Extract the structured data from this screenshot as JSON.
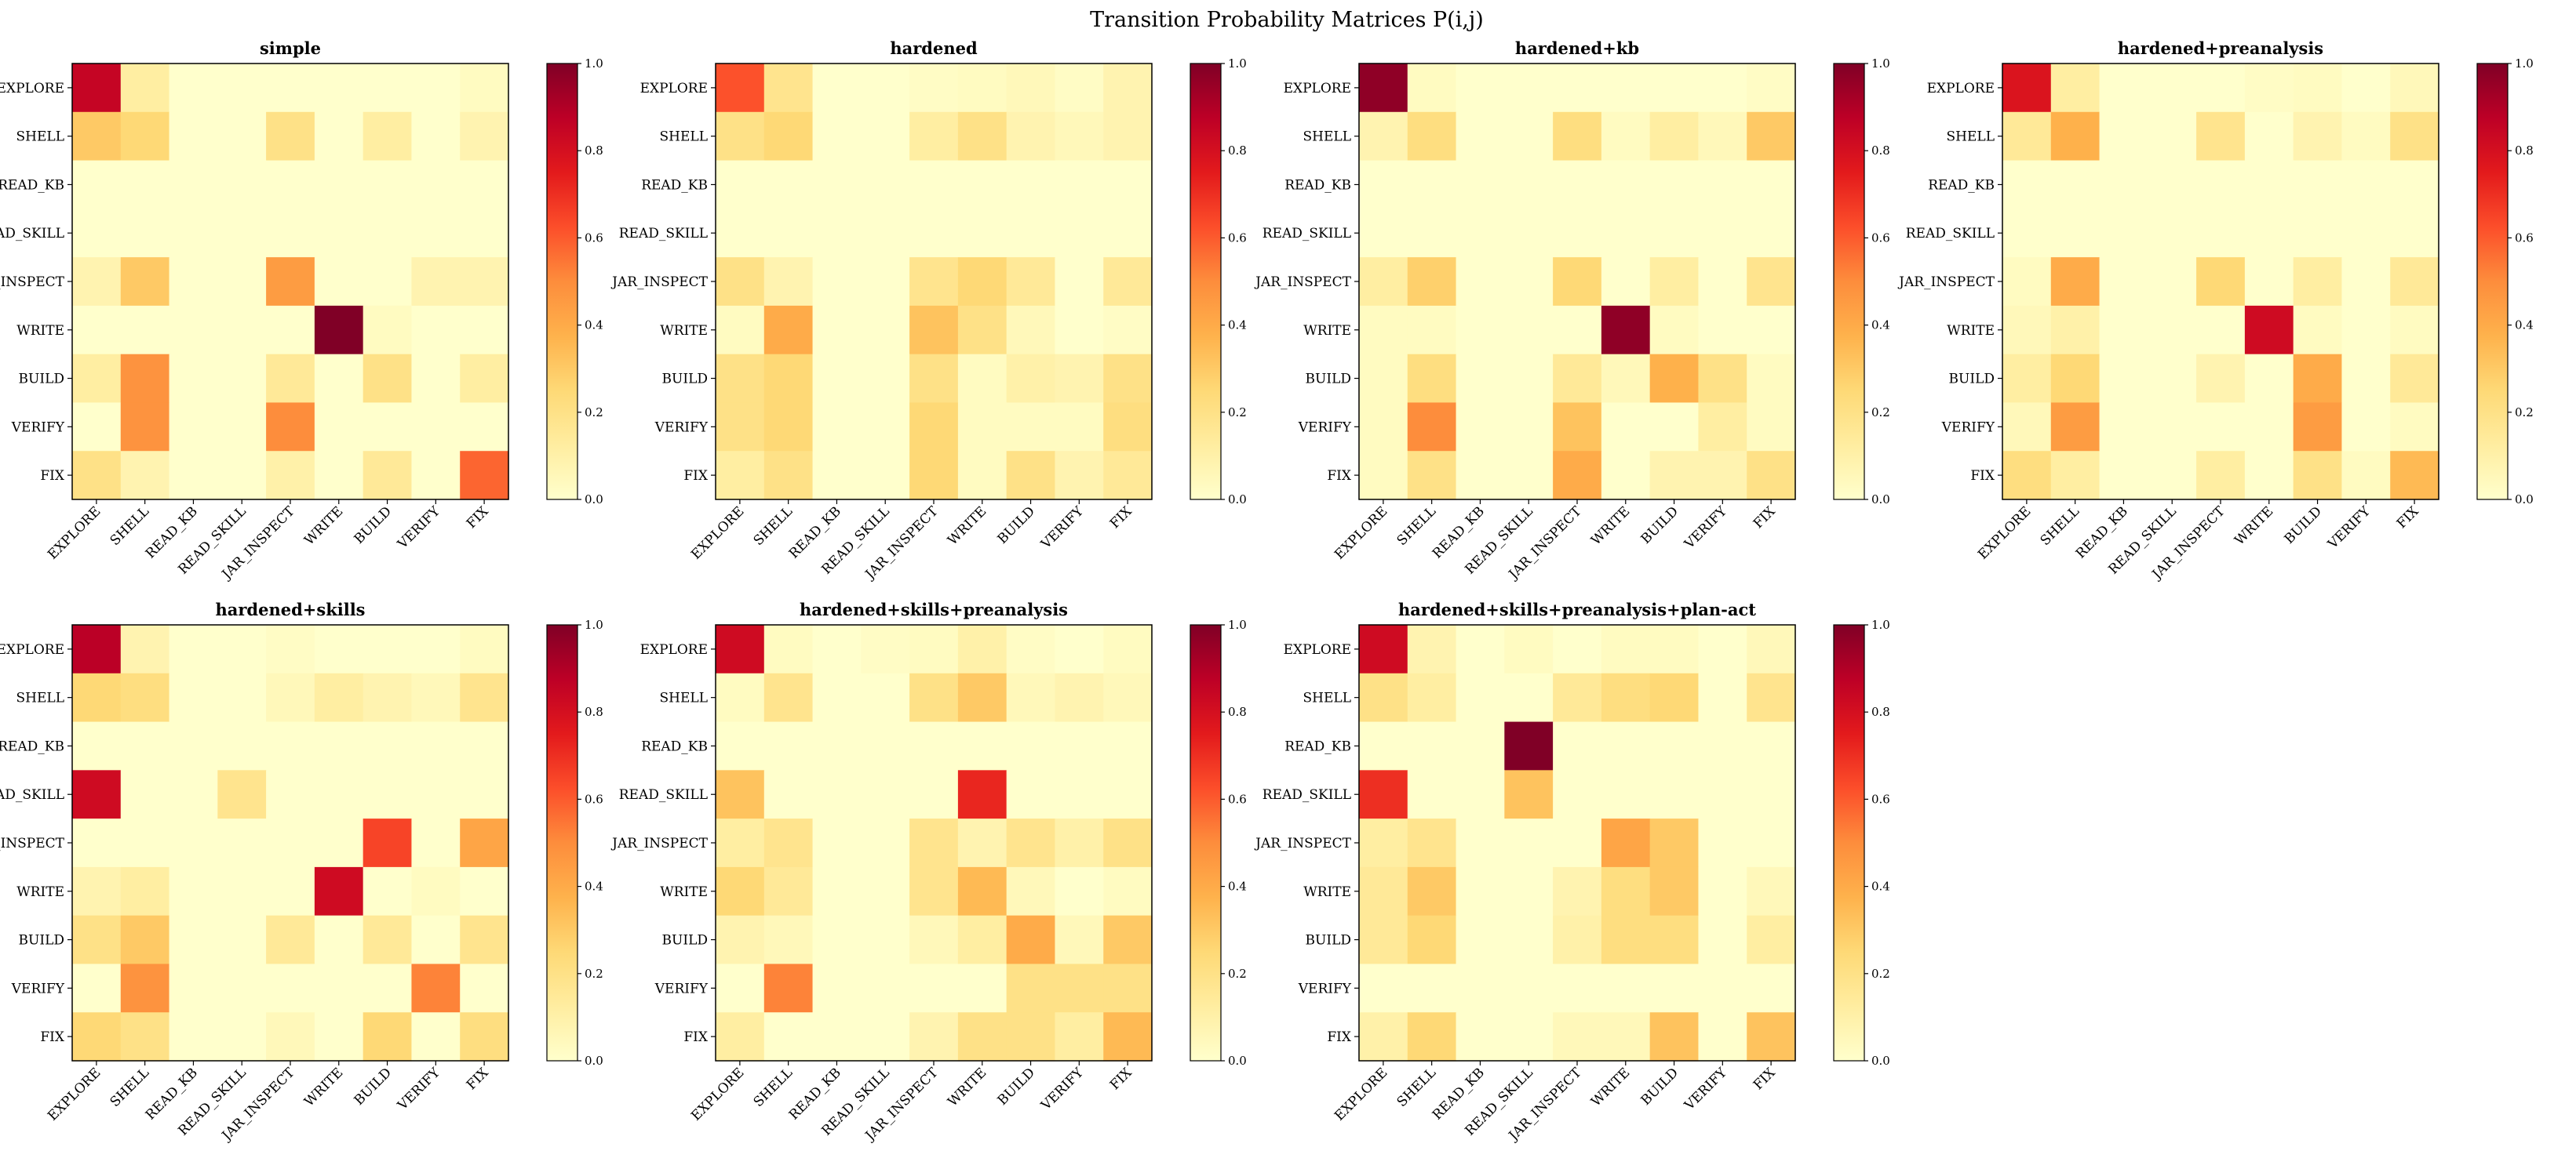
{
  "figure": {
    "title": "Transition Probability Matrices P(i,j)"
  },
  "chart_data": {
    "type": "heatmap",
    "colormap": "YlOrRd",
    "labels": [
      "EXPLORE",
      "SHELL",
      "READ_KB",
      "READ_SKILL",
      "JAR_INSPECT",
      "WRITE",
      "BUILD",
      "VERIFY",
      "FIX"
    ],
    "colorbar_ticks": [
      "0.0",
      "0.2",
      "0.4",
      "0.6",
      "0.8",
      "1.0"
    ],
    "vmin": 0.0,
    "vmax": 1.0,
    "panels": [
      {
        "title": "simple",
        "values": [
          [
            0.85,
            0.12,
            0,
            0,
            0,
            0,
            0,
            0,
            0.03
          ],
          [
            0.3,
            0.25,
            0,
            0,
            0.2,
            0,
            0.12,
            0,
            0.08
          ],
          [
            0,
            0,
            0,
            0,
            0,
            0,
            0,
            0,
            0
          ],
          [
            0,
            0,
            0,
            0,
            0,
            0,
            0,
            0,
            0
          ],
          [
            0.08,
            0.3,
            0,
            0,
            0.45,
            0,
            0,
            0.08,
            0.08
          ],
          [
            0,
            0,
            0,
            0,
            0,
            1.0,
            0.03,
            0,
            0
          ],
          [
            0.12,
            0.48,
            0,
            0,
            0.15,
            0,
            0.2,
            0,
            0.12
          ],
          [
            0,
            0.48,
            0,
            0,
            0.5,
            0,
            0,
            0,
            0
          ],
          [
            0.2,
            0.08,
            0,
            0,
            0.1,
            0,
            0.15,
            0,
            0.58
          ]
        ]
      },
      {
        "title": "hardened",
        "values": [
          [
            0.62,
            0.18,
            0,
            0,
            0.02,
            0.03,
            0.05,
            0.02,
            0.08
          ],
          [
            0.2,
            0.25,
            0,
            0,
            0.12,
            0.2,
            0.08,
            0.05,
            0.08
          ],
          [
            0,
            0,
            0,
            0,
            0,
            0,
            0,
            0,
            0
          ],
          [
            0,
            0,
            0,
            0,
            0,
            0,
            0,
            0,
            0
          ],
          [
            0.2,
            0.08,
            0,
            0,
            0.18,
            0.25,
            0.15,
            0,
            0.15
          ],
          [
            0.03,
            0.4,
            0,
            0,
            0.32,
            0.2,
            0.05,
            0,
            0.02
          ],
          [
            0.2,
            0.25,
            0,
            0,
            0.2,
            0.03,
            0.1,
            0.08,
            0.2
          ],
          [
            0.2,
            0.25,
            0,
            0,
            0.25,
            0.03,
            0.03,
            0.03,
            0.22
          ],
          [
            0.12,
            0.2,
            0,
            0,
            0.25,
            0.03,
            0.2,
            0.08,
            0.15
          ]
        ]
      },
      {
        "title": "hardened+kb",
        "values": [
          [
            0.97,
            0.03,
            0,
            0,
            0,
            0,
            0,
            0,
            0.02
          ],
          [
            0.08,
            0.22,
            0,
            0,
            0.22,
            0.03,
            0.12,
            0.05,
            0.3
          ],
          [
            0,
            0,
            0,
            0,
            0,
            0,
            0,
            0,
            0
          ],
          [
            0,
            0,
            0,
            0,
            0,
            0,
            0,
            0,
            0
          ],
          [
            0.12,
            0.28,
            0,
            0,
            0.25,
            0,
            0.12,
            0,
            0.18
          ],
          [
            0.03,
            0.03,
            0,
            0,
            0,
            0.97,
            0.03,
            0,
            0
          ],
          [
            0.03,
            0.22,
            0,
            0,
            0.15,
            0.05,
            0.38,
            0.2,
            0.03
          ],
          [
            0.03,
            0.5,
            0,
            0,
            0.32,
            0,
            0,
            0.12,
            0.03
          ],
          [
            0.03,
            0.2,
            0,
            0,
            0.4,
            0,
            0.08,
            0.08,
            0.2
          ]
        ]
      },
      {
        "title": "hardened+preanalysis",
        "values": [
          [
            0.78,
            0.12,
            0,
            0,
            0,
            0.02,
            0.03,
            0,
            0.05
          ],
          [
            0.15,
            0.38,
            0,
            0,
            0.18,
            0,
            0.08,
            0.03,
            0.2
          ],
          [
            0,
            0,
            0,
            0,
            0,
            0,
            0,
            0,
            0
          ],
          [
            0,
            0,
            0,
            0,
            0,
            0,
            0,
            0,
            0
          ],
          [
            0.03,
            0.4,
            0,
            0,
            0.25,
            0,
            0.12,
            0,
            0.15
          ],
          [
            0.05,
            0.1,
            0,
            0,
            0,
            0.82,
            0.03,
            0,
            0.03
          ],
          [
            0.12,
            0.25,
            0,
            0,
            0.08,
            0,
            0.4,
            0,
            0.15
          ],
          [
            0.05,
            0.45,
            0,
            0,
            0,
            0,
            0.45,
            0,
            0.03
          ],
          [
            0.22,
            0.12,
            0,
            0,
            0.12,
            0,
            0.2,
            0.03,
            0.35
          ]
        ]
      },
      {
        "title": "hardened+skills",
        "values": [
          [
            0.88,
            0.08,
            0,
            0,
            0.02,
            0,
            0,
            0,
            0.03
          ],
          [
            0.25,
            0.22,
            0,
            0,
            0.05,
            0.12,
            0.08,
            0.05,
            0.18
          ],
          [
            0,
            0,
            0,
            0,
            0,
            0,
            0,
            0,
            0
          ],
          [
            0.82,
            0,
            0,
            0.18,
            0,
            0,
            0,
            0,
            0
          ],
          [
            0,
            0,
            0,
            0,
            0,
            0,
            0.65,
            0,
            0.42
          ],
          [
            0.08,
            0.12,
            0,
            0,
            0,
            0.82,
            0,
            0.03,
            0
          ],
          [
            0.2,
            0.3,
            0,
            0,
            0.15,
            0,
            0.15,
            0,
            0.18
          ],
          [
            0,
            0.48,
            0,
            0,
            0,
            0,
            0,
            0.52,
            0
          ],
          [
            0.25,
            0.2,
            0,
            0,
            0.05,
            0,
            0.25,
            0,
            0.22
          ]
        ]
      },
      {
        "title": "hardened+skills+preanalysis",
        "values": [
          [
            0.82,
            0.03,
            0,
            0.02,
            0.03,
            0.1,
            0.02,
            0,
            0.03
          ],
          [
            0.03,
            0.18,
            0,
            0,
            0.2,
            0.3,
            0.05,
            0.08,
            0.05
          ],
          [
            0,
            0,
            0,
            0,
            0,
            0,
            0,
            0,
            0
          ],
          [
            0.32,
            0,
            0,
            0,
            0,
            0.72,
            0,
            0,
            0
          ],
          [
            0.12,
            0.18,
            0,
            0,
            0.18,
            0.08,
            0.18,
            0.1,
            0.2
          ],
          [
            0.25,
            0.15,
            0,
            0,
            0.18,
            0.35,
            0.05,
            0,
            0.03
          ],
          [
            0.08,
            0.05,
            0,
            0,
            0.05,
            0.12,
            0.4,
            0.05,
            0.3
          ],
          [
            0,
            0.52,
            0,
            0,
            0,
            0,
            0.2,
            0.2,
            0.2
          ],
          [
            0.12,
            0,
            0,
            0,
            0.08,
            0.2,
            0.2,
            0.12,
            0.35
          ]
        ]
      },
      {
        "title": "hardened+skills+preanalysis+plan-act",
        "values": [
          [
            0.82,
            0.08,
            0,
            0.03,
            0,
            0.03,
            0.03,
            0,
            0.05
          ],
          [
            0.2,
            0.12,
            0,
            0,
            0.15,
            0.22,
            0.25,
            0,
            0.18
          ],
          [
            0,
            0,
            0,
            1.0,
            0,
            0,
            0,
            0,
            0
          ],
          [
            0.7,
            0,
            0,
            0.32,
            0,
            0,
            0,
            0,
            0
          ],
          [
            0.12,
            0.18,
            0,
            0,
            0,
            0.42,
            0.3,
            0,
            0
          ],
          [
            0.15,
            0.3,
            0,
            0,
            0.08,
            0.22,
            0.3,
            0,
            0.05
          ],
          [
            0.15,
            0.25,
            0,
            0,
            0.1,
            0.22,
            0.22,
            0,
            0.12
          ],
          [
            0,
            0,
            0,
            0,
            0,
            0,
            0,
            0,
            0
          ],
          [
            0.1,
            0.25,
            0,
            0,
            0.05,
            0.05,
            0.32,
            0,
            0.32
          ]
        ]
      }
    ]
  }
}
